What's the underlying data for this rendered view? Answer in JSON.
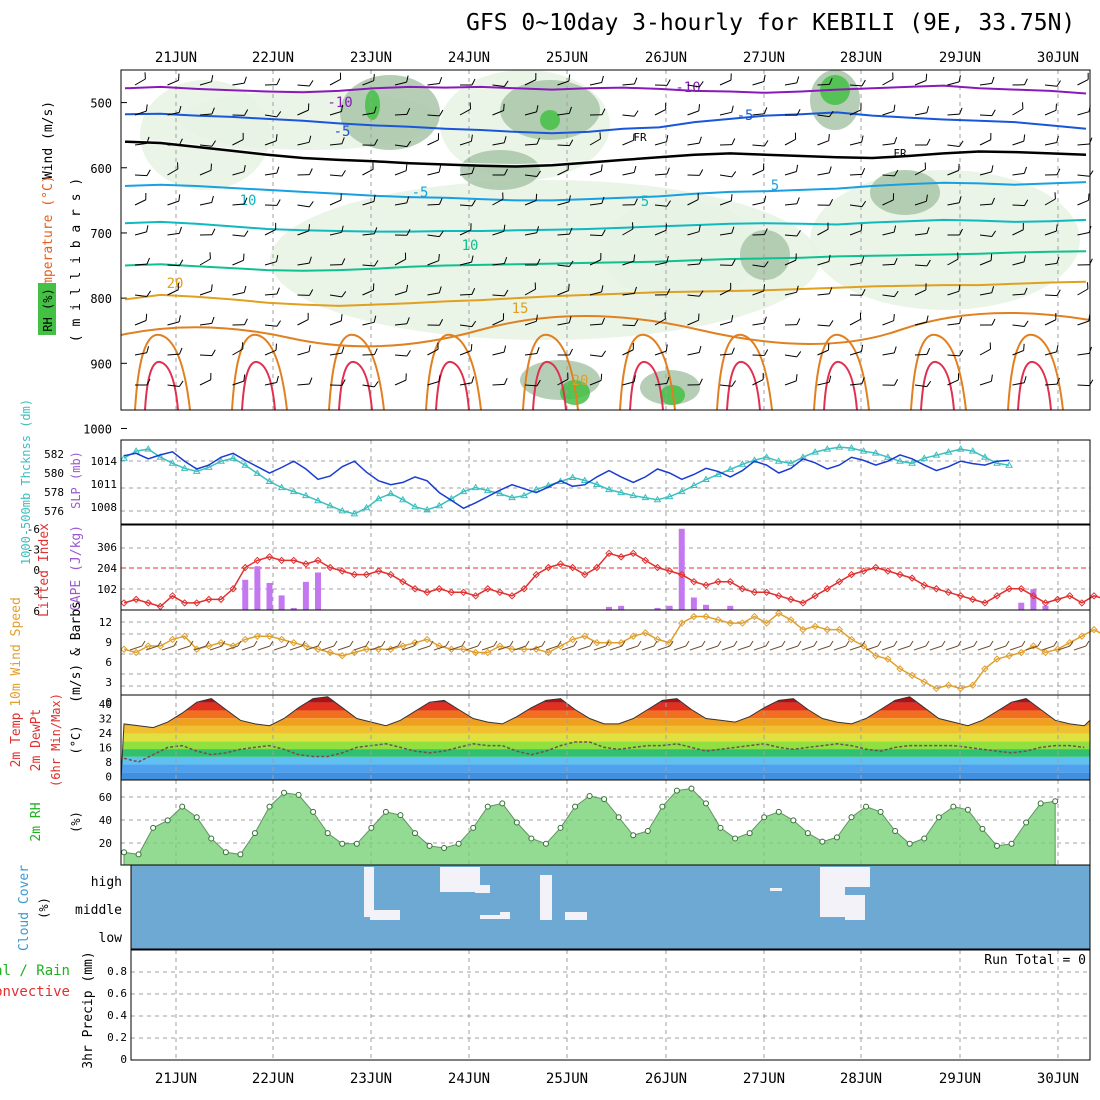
{
  "title": "GFS 0~10day 3-hourly for KEBILI (9E, 33.75N)",
  "days": [
    "21JUN",
    "22JUN",
    "23JUN",
    "24JUN",
    "25JUN",
    "26JUN",
    "27JUN",
    "28JUN",
    "29JUN",
    "30JUN"
  ],
  "colors": {
    "frame": "#000000",
    "grid": "#a0a0a0",
    "rh_shade_light": "#e6f2e3",
    "rh_shade_mid": "#a8c6a8",
    "rh_shade_high": "#44c044",
    "wind_barb": "#000000",
    "slp_line": "#1a3cd0",
    "thickness_line": "#3cbfbf",
    "lifted_index": "#e03030",
    "cape_bar": "#c478f0",
    "wind10_speed": "#e0a030",
    "cloud_bg": "#6ea9d4",
    "cloud_fill": "#f2f2f8",
    "rh2m_fill": "#70d070",
    "precip_label_green": "#20b020",
    "precip_label_red": "#e03030"
  },
  "panels": {
    "upper": {
      "yaxis_ticks": [
        "500",
        "600",
        "700",
        "800",
        "900",
        "1000"
      ],
      "label_wind": "Wind (m/s)",
      "label_temp": "Temperature (°C)",
      "label_rh": "RH (%)",
      "label_units": "( m i l l i b a r s )",
      "contour_labels": [
        "-10",
        "-10",
        "-5",
        "-5",
        "FR",
        "FR",
        "-5",
        "5",
        "10",
        "5",
        "10",
        "15",
        "20",
        "20"
      ],
      "chart_data": {
        "type": "contour",
        "ylim_mb": [
          1000,
          450
        ],
        "isotherms": [
          {
            "label": "-10",
            "color": "#8a1ab8",
            "mb": [
              478,
              476,
              479,
              481,
              483,
              484,
              482,
              478,
              476,
              477,
              476,
              478,
              480,
              478,
              477,
              479,
              482,
              483,
              485,
              483,
              480,
              478,
              476,
              474,
              478,
              480,
              482,
              486
            ]
          },
          {
            "label": "-5",
            "color": "#1a56d8",
            "mb": [
              518,
              517,
              520,
              522,
              525,
              528,
              532,
              535,
              537,
              540,
              542,
              545,
              547,
              545,
              540,
              538,
              530,
              525,
              520,
              518,
              515,
              520,
              523,
              526,
              528,
              530,
              535,
              540
            ]
          },
          {
            "label": "FR",
            "color": "#000000",
            "mb": [
              560,
              562,
              568,
              574,
              580,
              585,
              588,
              590,
              593,
              595,
              597,
              598,
              596,
              592,
              588,
              584,
              580,
              578,
              580,
              582,
              584,
              585,
              582,
              578,
              575,
              576,
              578,
              580
            ]
          },
          {
            "label": "5",
            "color": "#18a0e0",
            "mb": [
              628,
              626,
              628,
              631,
              634,
              637,
              640,
              643,
              645,
              646,
              648,
              650,
              650,
              648,
              646,
              644,
              640,
              637,
              636,
              634,
              632,
              628,
              625,
              623,
              624,
              626,
              624,
              622
            ]
          },
          {
            "label": "10",
            "color": "#10b8c0",
            "mb": [
              685,
              683,
              686,
              690,
              694,
              696,
              697,
              698,
              698,
              697,
              697,
              696,
              695,
              694,
              692,
              690,
              688,
              686,
              685,
              686,
              687,
              684,
              682,
              680,
              681,
              683,
              682,
              680
            ]
          },
          {
            "label": "15",
            "color": "#10c090",
            "mb": [
              750,
              748,
              751,
              754,
              757,
              758,
              757,
              755,
              752,
              750,
              749,
              748,
              747,
              746,
              745,
              744,
              742,
              740,
              739,
              738,
              736,
              735,
              734,
              733,
              732,
              730,
              729,
              728
            ]
          },
          {
            "label": "20",
            "color": "#e0a020",
            "mb": [
              802,
              795,
              798,
              802,
              807,
              810,
              812,
              810,
              808,
              805,
              803,
              800,
              797,
              795,
              793,
              791,
              790,
              789,
              788,
              786,
              784,
              782,
              781,
              780,
              780,
              778,
              776,
              775
            ]
          }
        ]
      }
    },
    "slp": {
      "label_thickness": "1000-500mb Thcknss (dm)",
      "label_slp": "SLP (mb)",
      "left_ticks": [
        "582",
        "580",
        "578",
        "576"
      ],
      "right_ticks": [
        "1014",
        "1011",
        "1008"
      ],
      "chart_data": {
        "type": "line",
        "x": "3-hourly steps from 20JUN 12Z",
        "series": [
          {
            "name": "SLP (mb)",
            "axis": "right",
            "values": [
              1014.2,
              1014.5,
              1013.8,
              1014.3,
              1014.7,
              1013.5,
              1012.5,
              1013.0,
              1014.0,
              1014.5,
              1013.6,
              1012.8,
              1012.0,
              1012.7,
              1013.5,
              1012.5,
              1011.2,
              1011.6,
              1012.8,
              1013.5,
              1012.1,
              1011.0,
              1010.5,
              1010.8,
              1011.5,
              1011.0,
              1009.5,
              1008.5,
              1007.5,
              1008.2,
              1009.0,
              1009.8,
              1010.5,
              1010.0,
              1009.5,
              1010.2,
              1011.0,
              1010.3,
              1010.5,
              1011.5,
              1012.3,
              1011.5,
              1010.8,
              1011.5,
              1012.5,
              1012.0,
              1011.2,
              1011.8,
              1012.6,
              1012.2,
              1011.5,
              1012.3,
              1013.5,
              1013.0,
              1012.0,
              1012.6,
              1013.8,
              1013.3,
              1012.5,
              1013.0,
              1014.0,
              1013.6,
              1013.0,
              1013.5,
              1014.3,
              1013.8,
              1013.0,
              1012.3,
              1012.8,
              1013.5,
              1013.2,
              1013.0,
              1013.5,
              1013.6
            ]
          },
          {
            "name": "1000-500mb Thickness (dm)",
            "axis": "left",
            "values": [
              581.5,
              582.2,
              582.4,
              581.6,
              581.0,
              580.5,
              580.2,
              580.6,
              581.2,
              581.5,
              580.8,
              580.0,
              579.2,
              578.6,
              578.2,
              577.8,
              577.3,
              576.8,
              576.3,
              576.0,
              576.6,
              577.5,
              578.0,
              577.4,
              576.7,
              576.4,
              576.8,
              577.5,
              578.2,
              578.6,
              578.3,
              578.0,
              577.6,
              577.8,
              578.4,
              578.8,
              579.2,
              579.6,
              579.3,
              578.9,
              578.4,
              578.1,
              577.8,
              577.6,
              577.4,
              577.7,
              578.2,
              578.8,
              579.4,
              579.9,
              580.4,
              580.9,
              581.3,
              581.6,
              581.2,
              581.0,
              581.6,
              582.1,
              582.4,
              582.6,
              582.5,
              582.2,
              582.0,
              581.6,
              581.2,
              581.0,
              581.5,
              581.8,
              582.1,
              582.4,
              582.2,
              581.6,
              581.0,
              580.8
            ]
          }
        ]
      }
    },
    "cape": {
      "label_li": "Lifted Index",
      "label_cape": "CAPE (J/kg)",
      "left_ticks": [
        "-6",
        "-3",
        "0",
        "3",
        "6"
      ],
      "right_ticks": [
        "306",
        "204",
        "102"
      ],
      "chart_data": {
        "type": "bar+line",
        "ylim_li": [
          6,
          -6
        ],
        "ylim_cape": [
          0,
          408
        ],
        "lifted_index": [
          5,
          4.5,
          5,
          5.5,
          4,
          5,
          5,
          4.5,
          4.5,
          3,
          0,
          -1,
          -1.5,
          -1,
          -1,
          -0.5,
          -1,
          0,
          0.5,
          1,
          1,
          0.5,
          1,
          2,
          3,
          3.5,
          3,
          3.5,
          3.5,
          4,
          3,
          3.5,
          4,
          3,
          1,
          0,
          -0.5,
          0,
          1,
          0,
          -2,
          -1.5,
          -2,
          -1,
          0,
          0.5,
          1,
          2,
          2.5,
          2,
          2,
          3,
          3.5,
          3.5,
          4,
          4.5,
          5,
          4,
          3,
          2,
          1,
          0.5,
          0,
          0.5,
          1,
          1.5,
          2.5,
          3,
          3.5,
          4,
          4.5,
          5,
          4,
          3,
          3,
          4,
          5,
          4.5,
          4,
          5,
          4,
          4.5,
          4,
          4,
          5.5,
          5,
          4,
          3,
          2,
          2
        ],
        "cape": [
          0,
          0,
          0,
          0,
          0,
          0,
          0,
          0,
          0,
          0,
          145,
          210,
          130,
          70,
          10,
          135,
          180,
          0,
          0,
          0,
          0,
          0,
          0,
          0,
          0,
          0,
          0,
          0,
          0,
          0,
          0,
          0,
          0,
          0,
          0,
          0,
          0,
          0,
          0,
          0,
          15,
          20,
          0,
          0,
          10,
          20,
          390,
          60,
          25,
          0,
          20,
          0,
          0,
          0,
          0,
          0,
          0,
          0,
          0,
          0,
          0,
          0,
          0,
          0,
          0,
          0,
          0,
          0,
          0,
          0,
          0,
          0,
          0,
          0,
          35,
          100,
          20,
          0,
          0,
          0,
          0,
          0,
          0,
          0,
          0,
          0,
          0,
          0,
          0,
          0
        ]
      }
    },
    "wind10": {
      "label_speed": "10m Wind Speed",
      "label_barbs": "(m/s) & Barbs",
      "left_ticks": [
        "12",
        "9",
        "6",
        "3",
        "0"
      ],
      "chart_data": {
        "type": "line",
        "ylim": [
          0,
          13
        ],
        "speed_ms": [
          7,
          6.5,
          7.5,
          7.5,
          8.5,
          9,
          7,
          7.5,
          8,
          7.5,
          8.5,
          9,
          9,
          8.5,
          8,
          7.5,
          7,
          6.5,
          6,
          6.5,
          7,
          7,
          7,
          7.5,
          8,
          8.5,
          7.5,
          7,
          7,
          6.5,
          6.5,
          7.5,
          7,
          7,
          7,
          6.5,
          7.5,
          8.5,
          9,
          8,
          8,
          8,
          9,
          9.5,
          8.5,
          8,
          11,
          12,
          12,
          11.5,
          11,
          11,
          12,
          11,
          12.5,
          11.5,
          10,
          10.5,
          10,
          10,
          8.5,
          7.5,
          6,
          5.5,
          4,
          3,
          2,
          1,
          1.5,
          1,
          1.5,
          4,
          5.5,
          6,
          6.5,
          7.5,
          6.5,
          7,
          8,
          9,
          10,
          9,
          9.5,
          8,
          7.5,
          7,
          10,
          10,
          9,
          9.5,
          8.5
        ]
      }
    },
    "temp2m": {
      "label_temp": "2m Temp",
      "label_dewpt": "2m DewPt",
      "label_minmax": "(6hr Min/Max)",
      "label_units": "(°C)",
      "left_ticks": [
        "40",
        "32",
        "24",
        "16",
        "8",
        "0"
      ],
      "chart_data": {
        "type": "area",
        "ylim": [
          -6,
          41
        ],
        "temperature": [
          25,
          24,
          23,
          26,
          31,
          37,
          39,
          33,
          27,
          25,
          24,
          28,
          34,
          39,
          40,
          34,
          28,
          26,
          24,
          27,
          32,
          37,
          38,
          33,
          28,
          26,
          25,
          29,
          34,
          38,
          39,
          33,
          28,
          25,
          25,
          28,
          33,
          38,
          39,
          33,
          28,
          27,
          26,
          29,
          34,
          38,
          39,
          33,
          28,
          26,
          25,
          28,
          33,
          38,
          40,
          34,
          28,
          26,
          24,
          27,
          32,
          37,
          39,
          33,
          27,
          25,
          24,
          27,
          31,
          36,
          38,
          32,
          27,
          24,
          23
        ],
        "dewpoint": [
          6,
          4,
          8,
          12,
          13,
          10,
          8,
          9,
          11,
          12,
          13,
          11,
          8,
          7,
          7,
          9,
          12,
          13,
          14,
          12,
          10,
          9,
          10,
          12,
          14,
          13,
          13,
          10,
          8,
          10,
          13,
          15,
          15,
          12,
          11,
          12,
          13,
          13,
          14,
          12,
          10,
          11,
          12,
          13,
          14,
          12,
          11,
          12,
          13,
          14,
          13,
          11,
          10,
          12,
          13,
          13,
          13,
          13,
          12,
          11,
          10,
          9,
          10,
          12,
          13,
          13,
          12,
          11,
          9,
          10,
          12,
          13,
          13,
          12,
          12
        ]
      }
    },
    "rh2m": {
      "label": "2m RH",
      "label_units": "(%)",
      "left_ticks": [
        "60",
        "40",
        "20"
      ],
      "chart_data": {
        "type": "area",
        "ylim": [
          0,
          80
        ],
        "rh": [
          12,
          10,
          35,
          42,
          55,
          45,
          25,
          12,
          10,
          30,
          55,
          68,
          66,
          50,
          30,
          20,
          20,
          35,
          50,
          47,
          30,
          18,
          16,
          20,
          35,
          55,
          58,
          40,
          25,
          20,
          35,
          55,
          65,
          62,
          45,
          28,
          32,
          55,
          70,
          72,
          58,
          35,
          25,
          30,
          45,
          50,
          42,
          30,
          22,
          26,
          45,
          55,
          50,
          32,
          20,
          25,
          45,
          55,
          52,
          34,
          18,
          20,
          40,
          58,
          60
        ]
      }
    },
    "cloud": {
      "label": "Cloud Cover",
      "label_units": "(%)",
      "left_ticks": [
        "high",
        "middle",
        "low"
      ]
    },
    "precip": {
      "label_total": "Total / Rain",
      "label_conv": "Convective",
      "label_precip": "3hr Precip (mm)",
      "run_total": "Run Total = 0",
      "left_ticks": [
        "0.8",
        "0.6",
        "0.4",
        "0.2",
        "0"
      ],
      "chart_data": {
        "type": "bar",
        "ylim": [
          0,
          1
        ],
        "values": []
      }
    }
  }
}
